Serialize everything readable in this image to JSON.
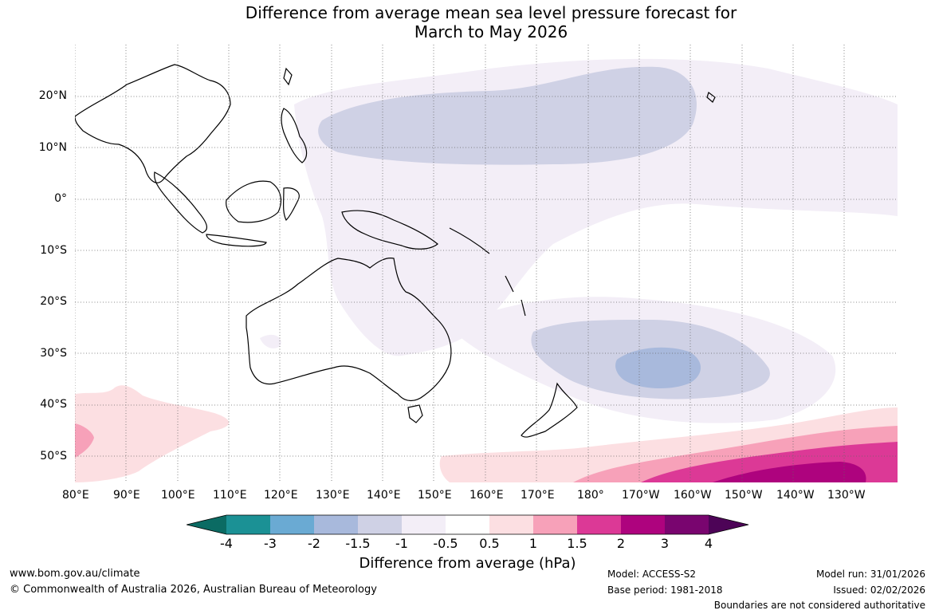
{
  "title": {
    "line1": "Difference from average mean sea level pressure forecast for",
    "line2": "March to May 2026"
  },
  "map": {
    "lon_labels": [
      "80°E",
      "90°E",
      "100°E",
      "110°E",
      "120°E",
      "130°E",
      "140°E",
      "150°E",
      "160°E",
      "170°E",
      "180°",
      "170°W",
      "160°W",
      "150°W",
      "140°W",
      "130°W"
    ],
    "lat_labels": [
      "20°N",
      "10°N",
      "0°",
      "10°S",
      "20°S",
      "30°S",
      "40°S",
      "50°S"
    ],
    "lon_range": [
      80,
      235
    ],
    "lat_range": [
      -55,
      30
    ]
  },
  "legend": {
    "title": "Difference from average (hPa)",
    "labels": [
      "-4",
      "-3",
      "-2",
      "-1.5",
      "-1",
      "-0.5",
      "0.5",
      "1",
      "1.5",
      "2",
      "3",
      "4"
    ],
    "colors": [
      "#0b6b63",
      "#1b9195",
      "#6aaad3",
      "#a8b9dc",
      "#cfd1e5",
      "#f3eef7",
      "#ffffff",
      "#fcdfe2",
      "#f7a1b9",
      "#dc3996",
      "#ae037e",
      "#79056f",
      "#4d0457"
    ]
  },
  "footer": {
    "website": "www.bom.gov.au/climate",
    "copyright": "© Commonwealth of Australia 2026, Australian Bureau of Meteorology",
    "model": "Model: ACCESS-S2",
    "base_period": "Base period: 1981-2018",
    "model_run": "Model run: 31/01/2026",
    "issued": "Issued: 02/02/2026",
    "disclaimer": "Boundaries are not considered authoritative"
  }
}
